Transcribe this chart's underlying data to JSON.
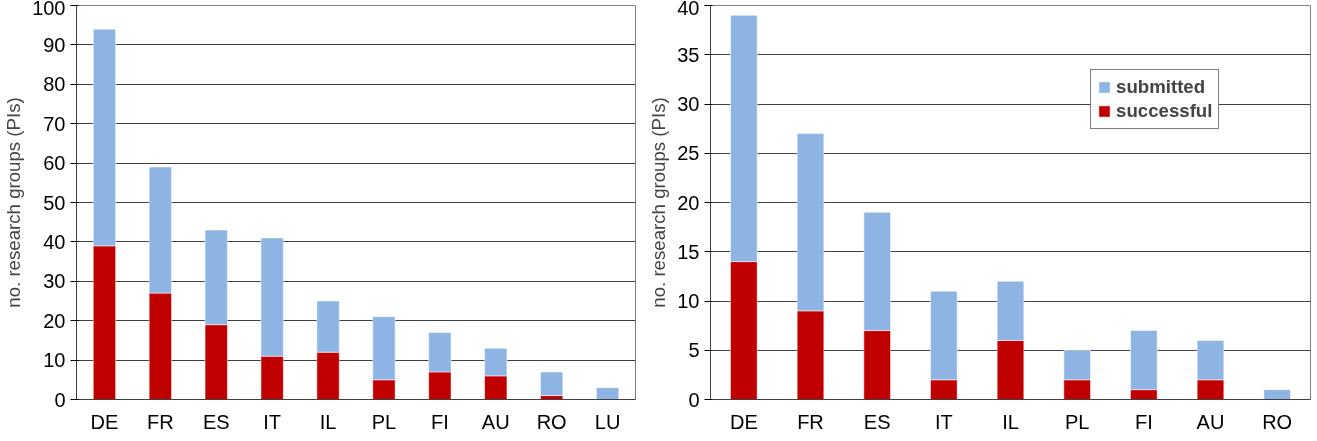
{
  "chart_data": [
    {
      "type": "bar",
      "stacked": true,
      "ylabel": "no. research groups (PIs)",
      "categories": [
        "DE",
        "FR",
        "ES",
        "IT",
        "IL",
        "PL",
        "FI",
        "AU",
        "RO",
        "LU"
      ],
      "ylim": [
        0,
        100
      ],
      "yticks": [
        0,
        10,
        20,
        30,
        40,
        50,
        60,
        70,
        80,
        90,
        100
      ],
      "grid": "y",
      "series": [
        {
          "color": "#c00000",
          "values": [
            39,
            27,
            19,
            11,
            12,
            5,
            7,
            6,
            1,
            0
          ]
        },
        {
          "color": "#8eb4e3",
          "values": [
            55,
            32,
            24,
            30,
            13,
            16,
            10,
            7,
            6,
            3
          ]
        }
      ]
    },
    {
      "type": "bar",
      "stacked": true,
      "ylabel": "no. research groups (PIs)",
      "categories": [
        "DE",
        "FR",
        "ES",
        "IT",
        "IL",
        "PL",
        "FI",
        "AU",
        "RO"
      ],
      "ylim": [
        0,
        40
      ],
      "yticks": [
        0,
        5,
        10,
        15,
        20,
        25,
        30,
        35,
        40
      ],
      "grid": "y",
      "legend": "top right",
      "series": [
        {
          "name": "successful",
          "color": "#c00000",
          "values": [
            14,
            9,
            7,
            2,
            6,
            2,
            1,
            2,
            0
          ]
        },
        {
          "name": "submitted",
          "color": "#8eb4e3",
          "values": [
            25,
            18,
            12,
            9,
            6,
            3,
            6,
            4,
            1
          ]
        }
      ]
    }
  ]
}
